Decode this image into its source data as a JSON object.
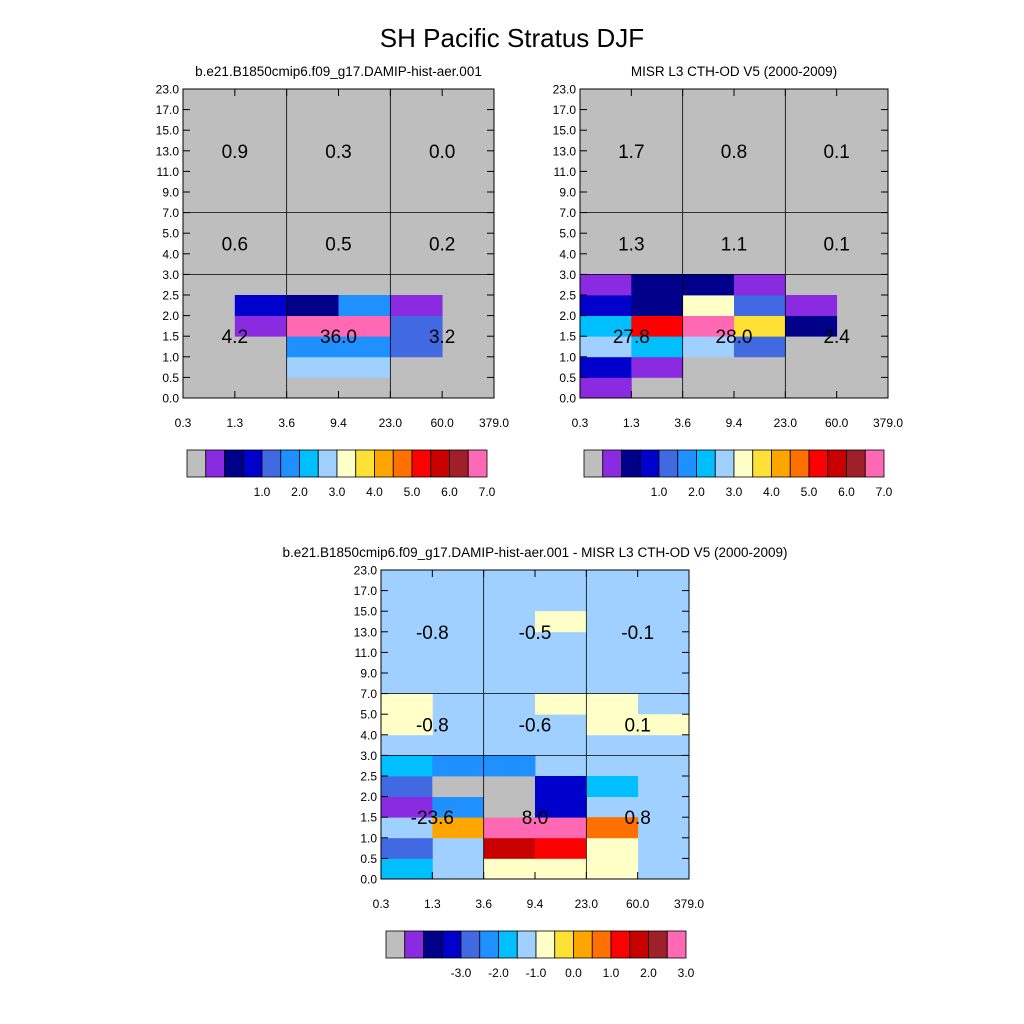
{
  "figure": {
    "title": "SH Pacific Stratus DJF"
  },
  "colors": {
    "panel_palette": [
      "#bebebe",
      "#8a2be2",
      "#00008b",
      "#0000cd",
      "#4169e1",
      "#1e90ff",
      "#00bfff",
      "#a0d0ff",
      "#ffffc8",
      "#ffe135",
      "#ffa500",
      "#ff7000",
      "#ff0000",
      "#c80000",
      "#a0202a",
      "#ff69b4"
    ],
    "diff_palette": [
      "#bebebe",
      "#8a2be2",
      "#00008b",
      "#0000cd",
      "#4169e1",
      "#1e90ff",
      "#00bfff",
      "#a0d0ff",
      "#ffffc8",
      "#ffe135",
      "#ffa500",
      "#ff7000",
      "#ff0000",
      "#c80000",
      "#a0202a",
      "#ff69b4"
    ]
  },
  "chart_data": [
    {
      "type": "heatmap",
      "title": "b.e21.B1850cmip6.f09_g17.DAMIP-hist-aer.001",
      "x_tick_labels": [
        "0.3",
        "1.3",
        "3.6",
        "9.4",
        "23.0",
        "60.0",
        "379.0"
      ],
      "y_tick_labels": [
        "0.0",
        "0.5",
        "1.0",
        "1.5",
        "2.0",
        "2.5",
        "3.0",
        "4.0",
        "5.0",
        "7.0",
        "9.0",
        "11.0",
        "13.0",
        "15.0",
        "17.0",
        "23.0"
      ],
      "background_color_index": 0,
      "cells": [
        [
          [
            1,
            3,
            1
          ],
          [
            1,
            4,
            3
          ],
          [
            2,
            1,
            7
          ],
          [
            2,
            2,
            5
          ],
          [
            2,
            3,
            15
          ],
          [
            2,
            4,
            2
          ],
          [
            3,
            1,
            7
          ],
          [
            3,
            2,
            5
          ],
          [
            3,
            3,
            15
          ],
          [
            3,
            4,
            5
          ],
          [
            4,
            2,
            4
          ],
          [
            4,
            3,
            4
          ],
          [
            4,
            4,
            1
          ]
        ]
      ],
      "region_values": [
        {
          "col": 0,
          "row": 0,
          "value": "4.2"
        },
        {
          "col": 1,
          "row": 0,
          "value": "36.0"
        },
        {
          "col": 2,
          "row": 0,
          "value": "3.2"
        },
        {
          "col": 0,
          "row": 1,
          "value": "0.6"
        },
        {
          "col": 1,
          "row": 1,
          "value": "0.5"
        },
        {
          "col": 2,
          "row": 1,
          "value": "0.2"
        },
        {
          "col": 0,
          "row": 2,
          "value": "0.9"
        },
        {
          "col": 1,
          "row": 2,
          "value": "0.3"
        },
        {
          "col": 2,
          "row": 2,
          "value": "0.0"
        }
      ],
      "colorbar_labels": [
        "1.0",
        "2.0",
        "3.0",
        "4.0",
        "5.0",
        "6.0",
        "7.0"
      ]
    },
    {
      "type": "heatmap",
      "title": "MISR L3 CTH-OD V5 (2000-2009)",
      "x_tick_labels": [
        "0.3",
        "1.3",
        "3.6",
        "9.4",
        "23.0",
        "60.0",
        "379.0"
      ],
      "y_tick_labels": [
        "0.0",
        "0.5",
        "1.0",
        "1.5",
        "2.0",
        "2.5",
        "3.0",
        "4.0",
        "5.0",
        "7.0",
        "9.0",
        "11.0",
        "13.0",
        "15.0",
        "17.0",
        "23.0"
      ],
      "background_color_index": 0,
      "cells": [
        [
          [
            0,
            0,
            1
          ],
          [
            0,
            1,
            3
          ],
          [
            0,
            2,
            7
          ],
          [
            0,
            3,
            6
          ],
          [
            0,
            4,
            3
          ],
          [
            0,
            5,
            1
          ],
          [
            1,
            1,
            1
          ],
          [
            1,
            2,
            6
          ],
          [
            1,
            3,
            12
          ],
          [
            1,
            4,
            2
          ],
          [
            1,
            5,
            2
          ],
          [
            2,
            2,
            7
          ],
          [
            2,
            3,
            15
          ],
          [
            2,
            4,
            8
          ],
          [
            2,
            5,
            2
          ],
          [
            3,
            2,
            4
          ],
          [
            3,
            3,
            9
          ],
          [
            3,
            4,
            4
          ],
          [
            3,
            5,
            1
          ],
          [
            4,
            3,
            2
          ],
          [
            4,
            4,
            1
          ]
        ]
      ],
      "region_values": [
        {
          "col": 0,
          "row": 0,
          "value": "27.8"
        },
        {
          "col": 1,
          "row": 0,
          "value": "28.0"
        },
        {
          "col": 2,
          "row": 0,
          "value": "2.4"
        },
        {
          "col": 0,
          "row": 1,
          "value": "1.3"
        },
        {
          "col": 1,
          "row": 1,
          "value": "1.1"
        },
        {
          "col": 2,
          "row": 1,
          "value": "0.1"
        },
        {
          "col": 0,
          "row": 2,
          "value": "1.7"
        },
        {
          "col": 1,
          "row": 2,
          "value": "0.8"
        },
        {
          "col": 2,
          "row": 2,
          "value": "0.1"
        }
      ],
      "colorbar_labels": [
        "1.0",
        "2.0",
        "3.0",
        "4.0",
        "5.0",
        "6.0",
        "7.0"
      ]
    },
    {
      "type": "heatmap",
      "title": "b.e21.B1850cmip6.f09_g17.DAMIP-hist-aer.001 - MISR L3 CTH-OD V5 (2000-2009)",
      "x_tick_labels": [
        "0.3",
        "1.3",
        "3.6",
        "9.4",
        "23.0",
        "60.0",
        "379.0"
      ],
      "y_tick_labels": [
        "0.0",
        "0.5",
        "1.0",
        "1.5",
        "2.0",
        "2.5",
        "3.0",
        "4.0",
        "5.0",
        "7.0",
        "9.0",
        "11.0",
        "13.0",
        "15.0",
        "17.0",
        "23.0"
      ],
      "background_color_index": 7,
      "cells": [
        [
          [
            0,
            0,
            6
          ],
          [
            0,
            1,
            4
          ],
          [
            0,
            2,
            7
          ],
          [
            0,
            3,
            1
          ],
          [
            0,
            4,
            4
          ],
          [
            0,
            5,
            6
          ],
          [
            0,
            7,
            8
          ],
          [
            0,
            8,
            8
          ],
          [
            1,
            2,
            10
          ],
          [
            1,
            3,
            5
          ],
          [
            1,
            4,
            0
          ],
          [
            1,
            5,
            5
          ],
          [
            2,
            0,
            8
          ],
          [
            2,
            1,
            13
          ],
          [
            2,
            2,
            15
          ],
          [
            2,
            3,
            0
          ],
          [
            2,
            4,
            0
          ],
          [
            2,
            5,
            5
          ],
          [
            3,
            0,
            8
          ],
          [
            3,
            1,
            12
          ],
          [
            3,
            2,
            15
          ],
          [
            3,
            3,
            3
          ],
          [
            3,
            4,
            3
          ],
          [
            3,
            8,
            8
          ],
          [
            3,
            12,
            8
          ],
          [
            4,
            0,
            8
          ],
          [
            4,
            1,
            8
          ],
          [
            4,
            2,
            11
          ],
          [
            4,
            4,
            6
          ],
          [
            4,
            7,
            8
          ],
          [
            4,
            8,
            8
          ],
          [
            5,
            7,
            8
          ]
        ]
      ],
      "region_values": [
        {
          "col": 0,
          "row": 0,
          "value": "-23.6"
        },
        {
          "col": 1,
          "row": 0,
          "value": "8.0"
        },
        {
          "col": 2,
          "row": 0,
          "value": "0.8"
        },
        {
          "col": 0,
          "row": 1,
          "value": "-0.8"
        },
        {
          "col": 1,
          "row": 1,
          "value": "-0.6"
        },
        {
          "col": 2,
          "row": 1,
          "value": "0.1"
        },
        {
          "col": 0,
          "row": 2,
          "value": "-0.8"
        },
        {
          "col": 1,
          "row": 2,
          "value": "-0.5"
        },
        {
          "col": 2,
          "row": 2,
          "value": "-0.1"
        }
      ],
      "colorbar_labels": [
        "-3.0",
        "-2.0",
        "-1.0",
        "0.0",
        "1.0",
        "2.0",
        "3.0"
      ]
    }
  ]
}
